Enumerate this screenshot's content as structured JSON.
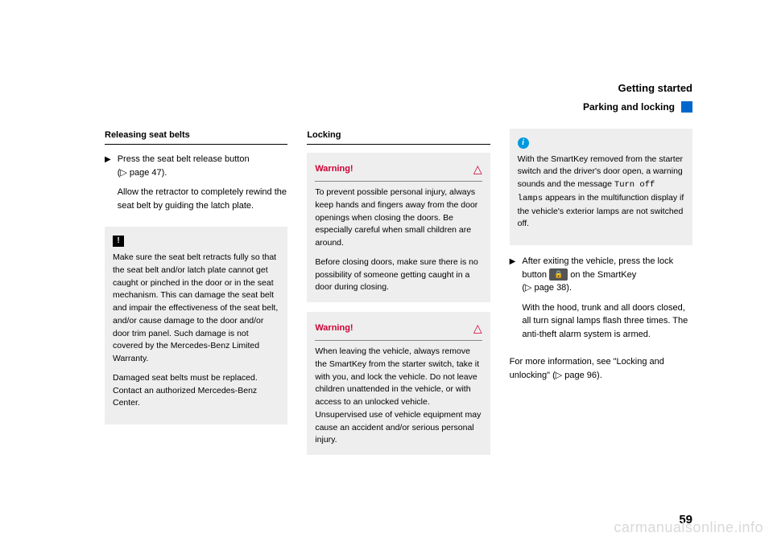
{
  "header": {
    "title": "Getting started",
    "subtitle": "Parking and locking"
  },
  "col1": {
    "heading": "Releasing seat belts",
    "bullet1_line1": "Press the seat belt release button",
    "bullet1_line2": "(▷ page 47).",
    "bullet1_p2": "Allow the retractor to completely rewind the seat belt by guiding the latch plate.",
    "note_icon": "!",
    "note_p1": "Make sure the seat belt retracts fully so that the seat belt and/or latch plate cannot get caught or pinched in the door or in the seat mechanism. This can damage the seat belt and impair the effectiveness of the seat belt, and/or cause damage to the door and/or door trim panel. Such damage is not covered by the Mercedes-Benz Limited Warranty.",
    "note_p2": "Damaged seat belts must be replaced. Contact an authorized Mercedes-Benz Center."
  },
  "col2": {
    "heading": "Locking",
    "warn_label": "Warning!",
    "warn1_p1": "To prevent possible personal injury, always keep hands and fingers away from the door openings when closing the doors. Be especially careful when small children are around.",
    "warn1_p2": "Before closing doors, make sure there is no possibility of someone getting caught in a door during closing.",
    "warn2_p1": "When leaving the vehicle, always remove the SmartKey from the starter switch, take it with you, and lock the vehicle. Do not leave children unattended in the vehicle, or with access to an unlocked vehicle. Unsupervised use of vehicle equipment may cause an accident and/or serious personal injury."
  },
  "col3": {
    "info_pre": "With the SmartKey removed from the starter switch and the driver's door open, a warning sounds and the message ",
    "info_mono": "Turn off lamps",
    "info_post": " appears in the multifunction display if the vehicle's exterior lamps are not switched off.",
    "bullet1_a": "After exiting the vehicle, press the lock button ",
    "bullet1_b": " on the SmartKey",
    "bullet1_c": "(▷ page 38).",
    "bullet1_p2": "With the hood, trunk and all doors closed, all turn signal lamps flash three times. The anti-theft alarm system is armed.",
    "footer": "For more information, see \"Locking and unlocking\" (▷ page 96)."
  },
  "page_number": "59",
  "watermark": "carmanualsonline.info"
}
